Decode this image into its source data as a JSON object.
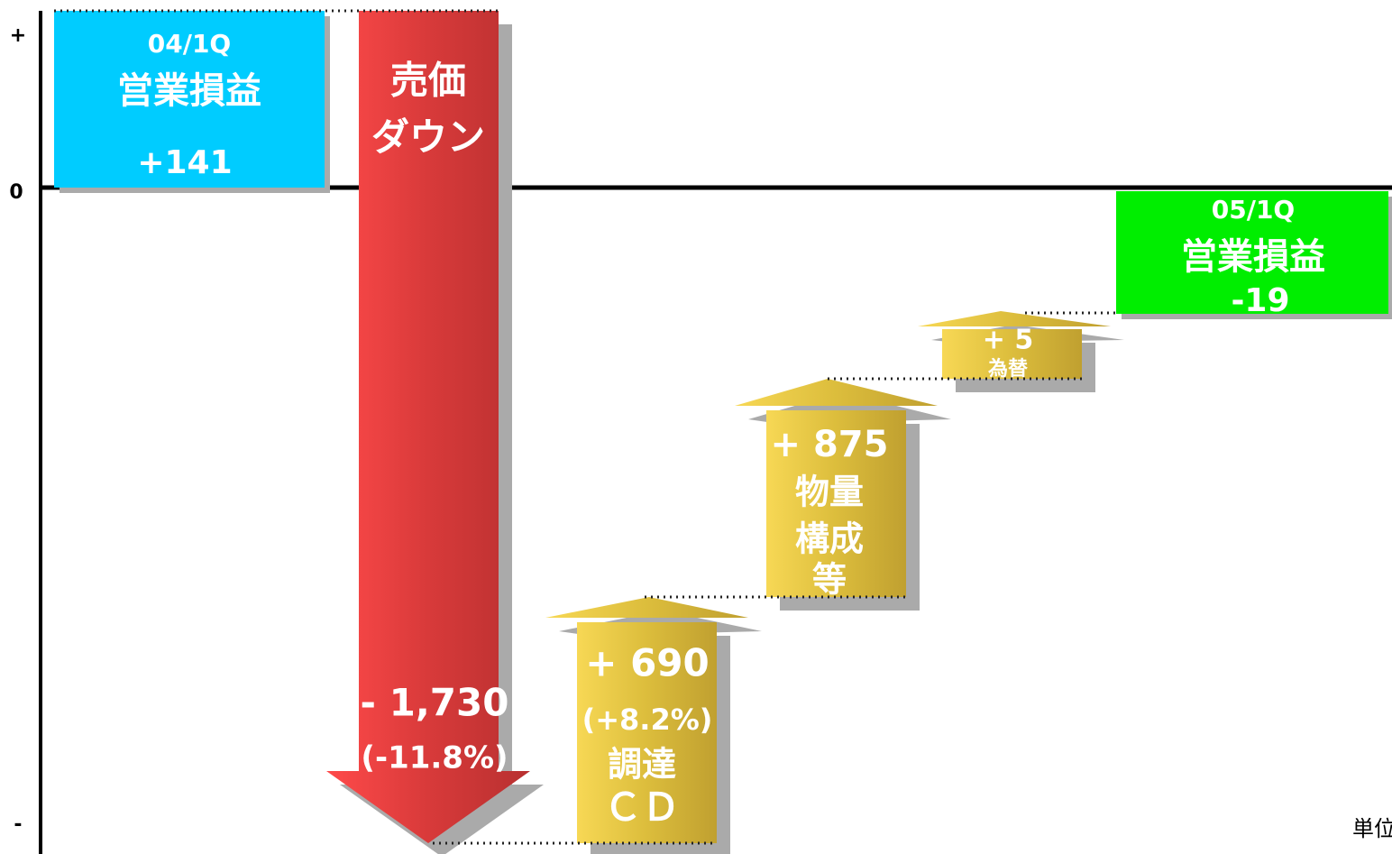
{
  "axis": {
    "plus": "+",
    "zero": "0",
    "minus": "-"
  },
  "start": {
    "period": "04/1Q",
    "label": "営業損益",
    "value": "+141"
  },
  "steps": [
    {
      "label": [
        "売価",
        "ダウン"
      ],
      "value": "- 1,730",
      "rate": "(-11.8%)"
    },
    {
      "value": "+ 690",
      "rate": "(+8.2%)",
      "label": [
        "調達",
        "ＣＤ"
      ]
    },
    {
      "value": "+ 875",
      "label": [
        "物量",
        "構成",
        "等"
      ]
    },
    {
      "value": "+ 5",
      "label": [
        "為替"
      ]
    }
  ],
  "end": {
    "period": "05/1Q",
    "label": "営業損益",
    "value": "-19"
  },
  "unit": "単位"
}
